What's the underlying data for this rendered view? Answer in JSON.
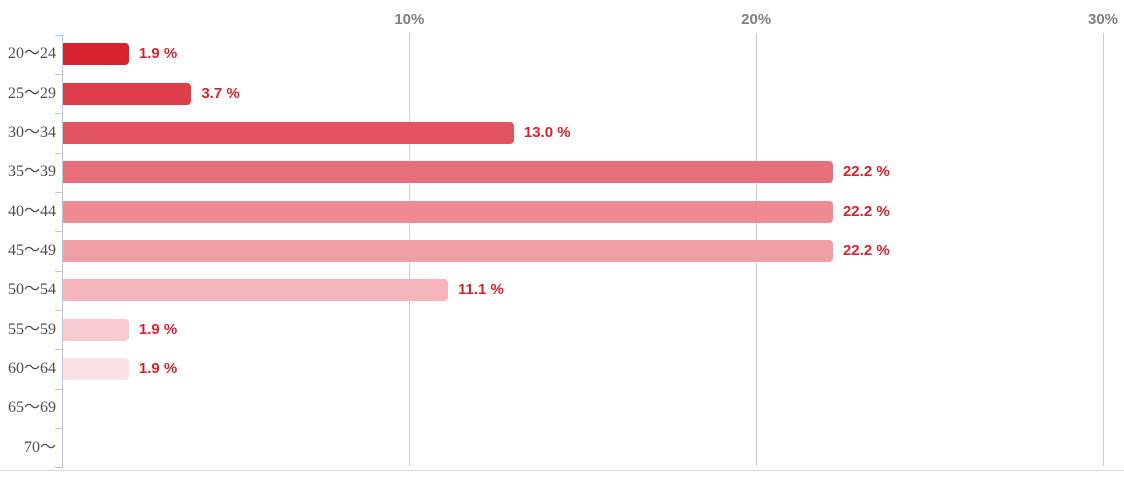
{
  "chart_data": {
    "type": "bar",
    "orientation": "horizontal",
    "title": "",
    "xlabel": "",
    "ylabel": "",
    "xlim": [
      0,
      30
    ],
    "grid": true,
    "legend": false,
    "categories": [
      "20〜24",
      "25〜29",
      "30〜34",
      "35〜39",
      "40〜44",
      "45〜49",
      "50〜54",
      "55〜59",
      "60〜64",
      "65〜69",
      "70〜"
    ],
    "values": [
      1.9,
      3.7,
      13.0,
      22.2,
      22.2,
      22.2,
      11.1,
      1.9,
      1.9,
      0,
      0
    ],
    "value_labels": [
      "1.9 %",
      "3.7 %",
      "13.0 %",
      "22.2 %",
      "22.2 %",
      "22.2 %",
      "11.1 %",
      "1.9 %",
      "1.9 %",
      "",
      ""
    ],
    "bar_colors": [
      "#d9232e",
      "#de3d49",
      "#e2545f",
      "#e86f79",
      "#ed8a92",
      "#f19fa6",
      "#f5b5ba",
      "#f8cbd0",
      "#fbe1e3",
      "#ffffff",
      "#ffffff"
    ],
    "x_axis": {
      "position": "top",
      "tick_labels": [
        "10%",
        "20%",
        "30%"
      ],
      "tick_values": [
        10,
        20,
        30
      ]
    },
    "colors": {
      "value_label": "#d6232f",
      "grid_line": "#cccccc",
      "axis_line": "#b5cbdc",
      "category_label": "#4d4d4d",
      "x_tick_label": "#7f7f7f"
    }
  }
}
